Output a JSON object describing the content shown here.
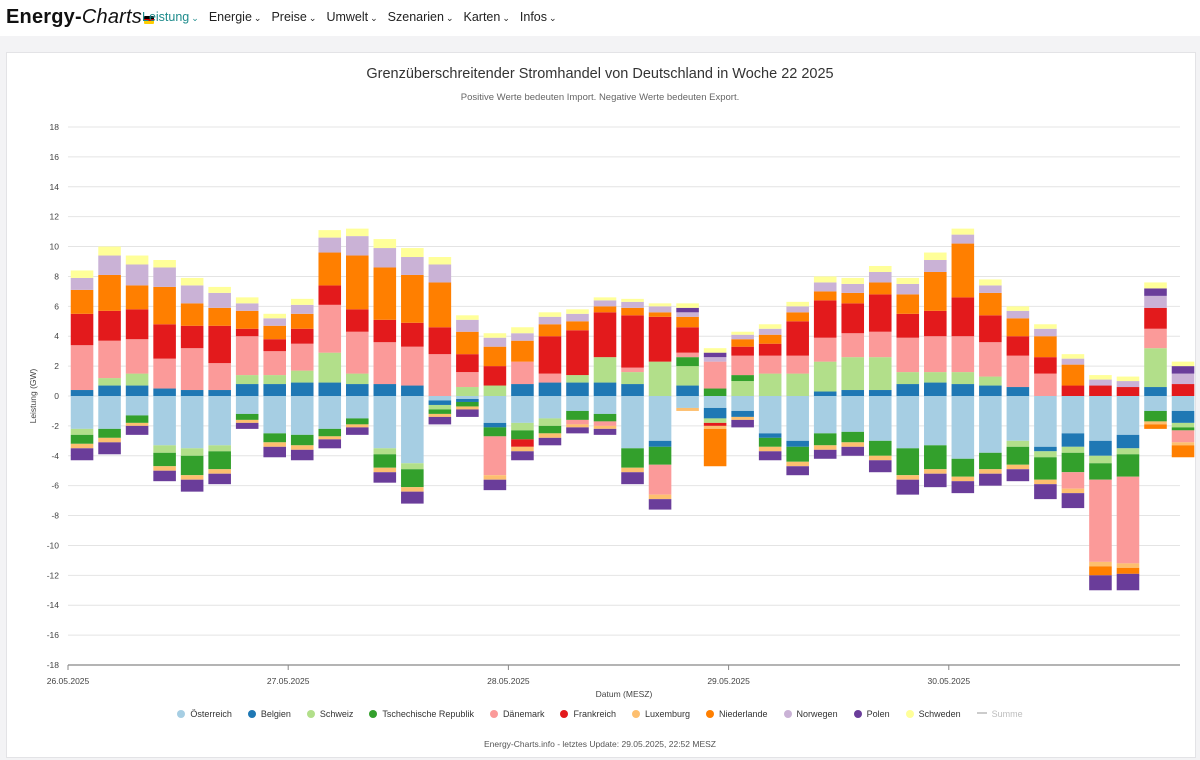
{
  "nav": {
    "brand_main": "Energy-",
    "brand_ital": "Charts",
    "items": [
      {
        "label": "Leistung",
        "active": true
      },
      {
        "label": "Energie",
        "active": false
      },
      {
        "label": "Preise",
        "active": false
      },
      {
        "label": "Umwelt",
        "active": false
      },
      {
        "label": "Szenarien",
        "active": false
      },
      {
        "label": "Karten",
        "active": false
      },
      {
        "label": "Infos",
        "active": false
      }
    ]
  },
  "colors": {
    "accent": "#1f8c8c",
    "flag": [
      "#000000",
      "#dd0000",
      "#ffce00"
    ]
  },
  "footer": {
    "credit": "Energy-Charts.info - letztes Update: 29.05.2025, 22:52 MESZ"
  },
  "chart_data": {
    "type": "bar",
    "stacked": true,
    "title": "Grenzüberschreitender Stromhandel von Deutschland in Woche 22 2025",
    "subtitle": "Positive Werte bedeuten Import. Negative Werte bedeuten Export.",
    "xlabel": "Datum (MESZ)",
    "ylabel": "Leistung (GW)",
    "ylim": [
      -18,
      18
    ],
    "yticks": [
      "18",
      "16",
      "14",
      "12",
      "10",
      "8",
      "6",
      "4",
      "2",
      "0",
      "-2",
      "-4",
      "-6",
      "-8",
      "-10",
      "-12",
      "-14",
      "-16",
      "-18"
    ],
    "xticks": [
      "26.05.2025",
      "27.05.2025",
      "28.05.2025",
      "29.05.2025",
      "30.05.2025"
    ],
    "x_start": "26.05.2025 00:00",
    "x_step_hours": 3,
    "legend_position": "bottom",
    "grid": true,
    "categories": [
      "26.05. 00:00",
      "26.05. 03:00",
      "26.05. 06:00",
      "26.05. 09:00",
      "26.05. 12:00",
      "26.05. 15:00",
      "26.05. 18:00",
      "26.05. 21:00",
      "27.05. 00:00",
      "27.05. 03:00",
      "27.05. 06:00",
      "27.05. 09:00",
      "27.05. 12:00",
      "27.05. 15:00",
      "27.05. 18:00",
      "27.05. 21:00",
      "28.05. 00:00",
      "28.05. 03:00",
      "28.05. 06:00",
      "28.05. 09:00",
      "28.05. 12:00",
      "28.05. 15:00",
      "28.05. 18:00",
      "28.05. 21:00",
      "29.05. 00:00",
      "29.05. 03:00",
      "29.05. 06:00",
      "29.05. 09:00",
      "29.05. 12:00",
      "29.05. 15:00",
      "29.05. 18:00",
      "29.05. 21:00",
      "30.05. 00:00",
      "30.05. 03:00",
      "30.05. 06:00",
      "30.05. 09:00",
      "30.05. 12:00",
      "30.05. 15:00",
      "30.05. 18:00",
      "30.05. 21:00",
      "31.05. 00:00"
    ],
    "series": [
      {
        "name": "Österreich",
        "color": "#a6cee3",
        "values": [
          -2.2,
          -2.2,
          -1.3,
          -3.3,
          -3.5,
          -3.3,
          -1.2,
          -2.5,
          -2.6,
          -2.2,
          -1.5,
          -3.5,
          -4.5,
          -0.3,
          -0.2,
          -1.8,
          -1.8,
          -1.5,
          -1.0,
          -1.2,
          -3.5,
          -3.0,
          -0.8,
          -0.8,
          -1.0,
          -2.5,
          -3.0,
          -2.5,
          -2.4,
          -3.0,
          -3.5,
          -3.3,
          -4.2,
          -3.8,
          -3.0,
          -3.4,
          -2.5,
          -3.0,
          -2.6,
          -1.0,
          -1.0
        ]
      },
      {
        "name": "Belgien",
        "color": "#1f78b4",
        "values": [
          0.4,
          0.7,
          0.7,
          0.5,
          0.4,
          0.4,
          0.8,
          0.8,
          0.9,
          0.9,
          0.8,
          0.8,
          0.7,
          -0.3,
          -0.2,
          -0.3,
          0.8,
          0.9,
          0.9,
          0.9,
          0.8,
          -0.4,
          0.7,
          -0.7,
          -0.4,
          -0.3,
          -0.4,
          0.3,
          0.4,
          0.4,
          0.8,
          0.9,
          0.8,
          0.7,
          0.6,
          -0.3,
          -0.9,
          -1.0,
          -0.9,
          0.6,
          -0.8
        ]
      },
      {
        "name": "Schweiz",
        "color": "#b2df8a",
        "values": [
          -0.4,
          0.5,
          0.8,
          -0.5,
          -0.5,
          -0.4,
          0.6,
          0.6,
          0.8,
          2.0,
          0.7,
          -0.4,
          -0.4,
          -0.3,
          0.6,
          0.7,
          -0.5,
          -0.5,
          0.5,
          1.7,
          0.8,
          2.3,
          1.3,
          -0.3,
          1.0,
          1.5,
          1.5,
          2.0,
          2.2,
          2.2,
          0.8,
          0.7,
          0.8,
          0.6,
          -0.4,
          -0.4,
          -0.4,
          -0.5,
          -0.4,
          2.6,
          -0.3
        ]
      },
      {
        "name": "Tschechische Republik",
        "color": "#33a02c",
        "values": [
          -0.6,
          -0.6,
          -0.5,
          -0.9,
          -1.3,
          -1.2,
          -0.4,
          -0.6,
          -0.7,
          -0.5,
          -0.4,
          -0.9,
          -1.2,
          -0.3,
          -0.3,
          -0.6,
          -0.6,
          -0.5,
          -0.6,
          -0.5,
          -1.3,
          -1.2,
          0.6,
          0.5,
          0.4,
          -0.6,
          -1.0,
          -0.8,
          -0.7,
          -1.0,
          -1.8,
          -1.6,
          -1.2,
          -1.1,
          -1.2,
          -1.5,
          -1.3,
          -1.1,
          -1.5,
          -0.7,
          -0.2
        ]
      },
      {
        "name": "Dänemark",
        "color": "#fb9a99",
        "values": [
          3.0,
          2.5,
          2.3,
          2.0,
          2.8,
          1.8,
          2.6,
          1.6,
          1.8,
          3.2,
          2.8,
          2.8,
          2.6,
          2.8,
          1.0,
          -2.6,
          1.5,
          0.6,
          -0.3,
          -0.3,
          0.3,
          -2.0,
          0.3,
          1.8,
          1.3,
          1.2,
          1.2,
          1.6,
          1.6,
          1.7,
          2.3,
          2.4,
          2.4,
          2.3,
          2.1,
          1.5,
          -1.1,
          -5.5,
          -5.8,
          1.3,
          -0.8
        ]
      },
      {
        "name": "Frankreich",
        "color": "#e31a1c",
        "values": [
          2.1,
          2.0,
          2.0,
          2.3,
          1.5,
          2.5,
          0.5,
          0.8,
          1.0,
          1.3,
          1.5,
          1.5,
          1.6,
          1.8,
          1.2,
          1.3,
          -0.5,
          2.5,
          3.0,
          3.0,
          3.5,
          3.0,
          1.7,
          -0.2,
          0.6,
          0.8,
          2.3,
          2.5,
          2.0,
          2.5,
          1.6,
          1.7,
          2.6,
          1.8,
          1.3,
          1.1,
          0.7,
          0.7,
          0.6,
          1.4,
          0.8
        ]
      },
      {
        "name": "Luxemburg",
        "color": "#fdbf6f",
        "values": [
          -0.3,
          -0.3,
          -0.2,
          -0.3,
          -0.3,
          -0.3,
          -0.2,
          -0.3,
          -0.3,
          -0.2,
          -0.2,
          -0.3,
          -0.3,
          -0.2,
          -0.2,
          -0.3,
          -0.3,
          -0.3,
          -0.2,
          -0.2,
          -0.3,
          -0.3,
          -0.2,
          -0.2,
          -0.2,
          -0.3,
          -0.3,
          -0.3,
          -0.3,
          -0.3,
          -0.3,
          -0.3,
          -0.3,
          -0.3,
          -0.3,
          -0.3,
          -0.3,
          -0.3,
          -0.3,
          -0.2,
          -0.2
        ]
      },
      {
        "name": "Niederlande",
        "color": "#ff7f00",
        "values": [
          1.6,
          2.4,
          1.6,
          2.5,
          1.5,
          1.2,
          1.2,
          0.9,
          1.0,
          2.2,
          3.6,
          3.5,
          3.2,
          3.0,
          1.5,
          1.3,
          1.4,
          0.8,
          0.6,
          0.4,
          0.5,
          0.3,
          0.7,
          -2.5,
          0.5,
          0.6,
          0.6,
          0.6,
          0.7,
          0.8,
          1.3,
          2.6,
          3.6,
          1.5,
          1.2,
          1.4,
          1.4,
          -0.6,
          -0.4,
          -0.3,
          -0.8
        ]
      },
      {
        "name": "Norwegen",
        "color": "#cab2d6",
        "values": [
          0.8,
          1.3,
          1.4,
          1.3,
          1.2,
          1.0,
          0.5,
          0.5,
          0.6,
          1.0,
          1.3,
          1.3,
          1.2,
          1.2,
          0.8,
          0.6,
          0.5,
          0.5,
          0.5,
          0.4,
          0.4,
          0.4,
          0.3,
          0.3,
          0.3,
          0.4,
          0.4,
          0.6,
          0.6,
          0.7,
          0.7,
          0.8,
          0.6,
          0.5,
          0.5,
          0.5,
          0.4,
          0.4,
          0.4,
          0.8,
          0.7
        ]
      },
      {
        "name": "Polen",
        "color": "#6a3d9a",
        "values": [
          -0.8,
          -0.8,
          -0.6,
          -0.7,
          -0.8,
          -0.7,
          -0.4,
          -0.7,
          -0.7,
          -0.6,
          -0.5,
          -0.7,
          -0.8,
          -0.5,
          -0.5,
          -0.7,
          -0.6,
          -0.5,
          -0.4,
          -0.4,
          -0.8,
          -0.7,
          0.3,
          0.3,
          -0.5,
          -0.6,
          -0.6,
          -0.6,
          -0.6,
          -0.8,
          -1.0,
          -0.9,
          -0.8,
          -0.8,
          -0.8,
          -1.0,
          -1.0,
          -1.0,
          -1.1,
          0.5,
          0.5
        ]
      },
      {
        "name": "Schweden",
        "color": "#ffff99",
        "values": [
          0.5,
          0.6,
          0.6,
          0.5,
          0.5,
          0.4,
          0.4,
          0.3,
          0.4,
          0.5,
          0.5,
          0.6,
          0.6,
          0.5,
          0.3,
          0.3,
          0.4,
          0.3,
          0.3,
          0.2,
          0.2,
          0.2,
          0.3,
          0.3,
          0.2,
          0.3,
          0.3,
          0.4,
          0.4,
          0.4,
          0.4,
          0.5,
          0.4,
          0.4,
          0.3,
          0.3,
          0.3,
          0.3,
          0.3,
          0.4,
          0.3
        ]
      }
    ],
    "extra_legend": [
      {
        "name": "Summe",
        "color": "#cccccc",
        "visible": false
      }
    ]
  }
}
